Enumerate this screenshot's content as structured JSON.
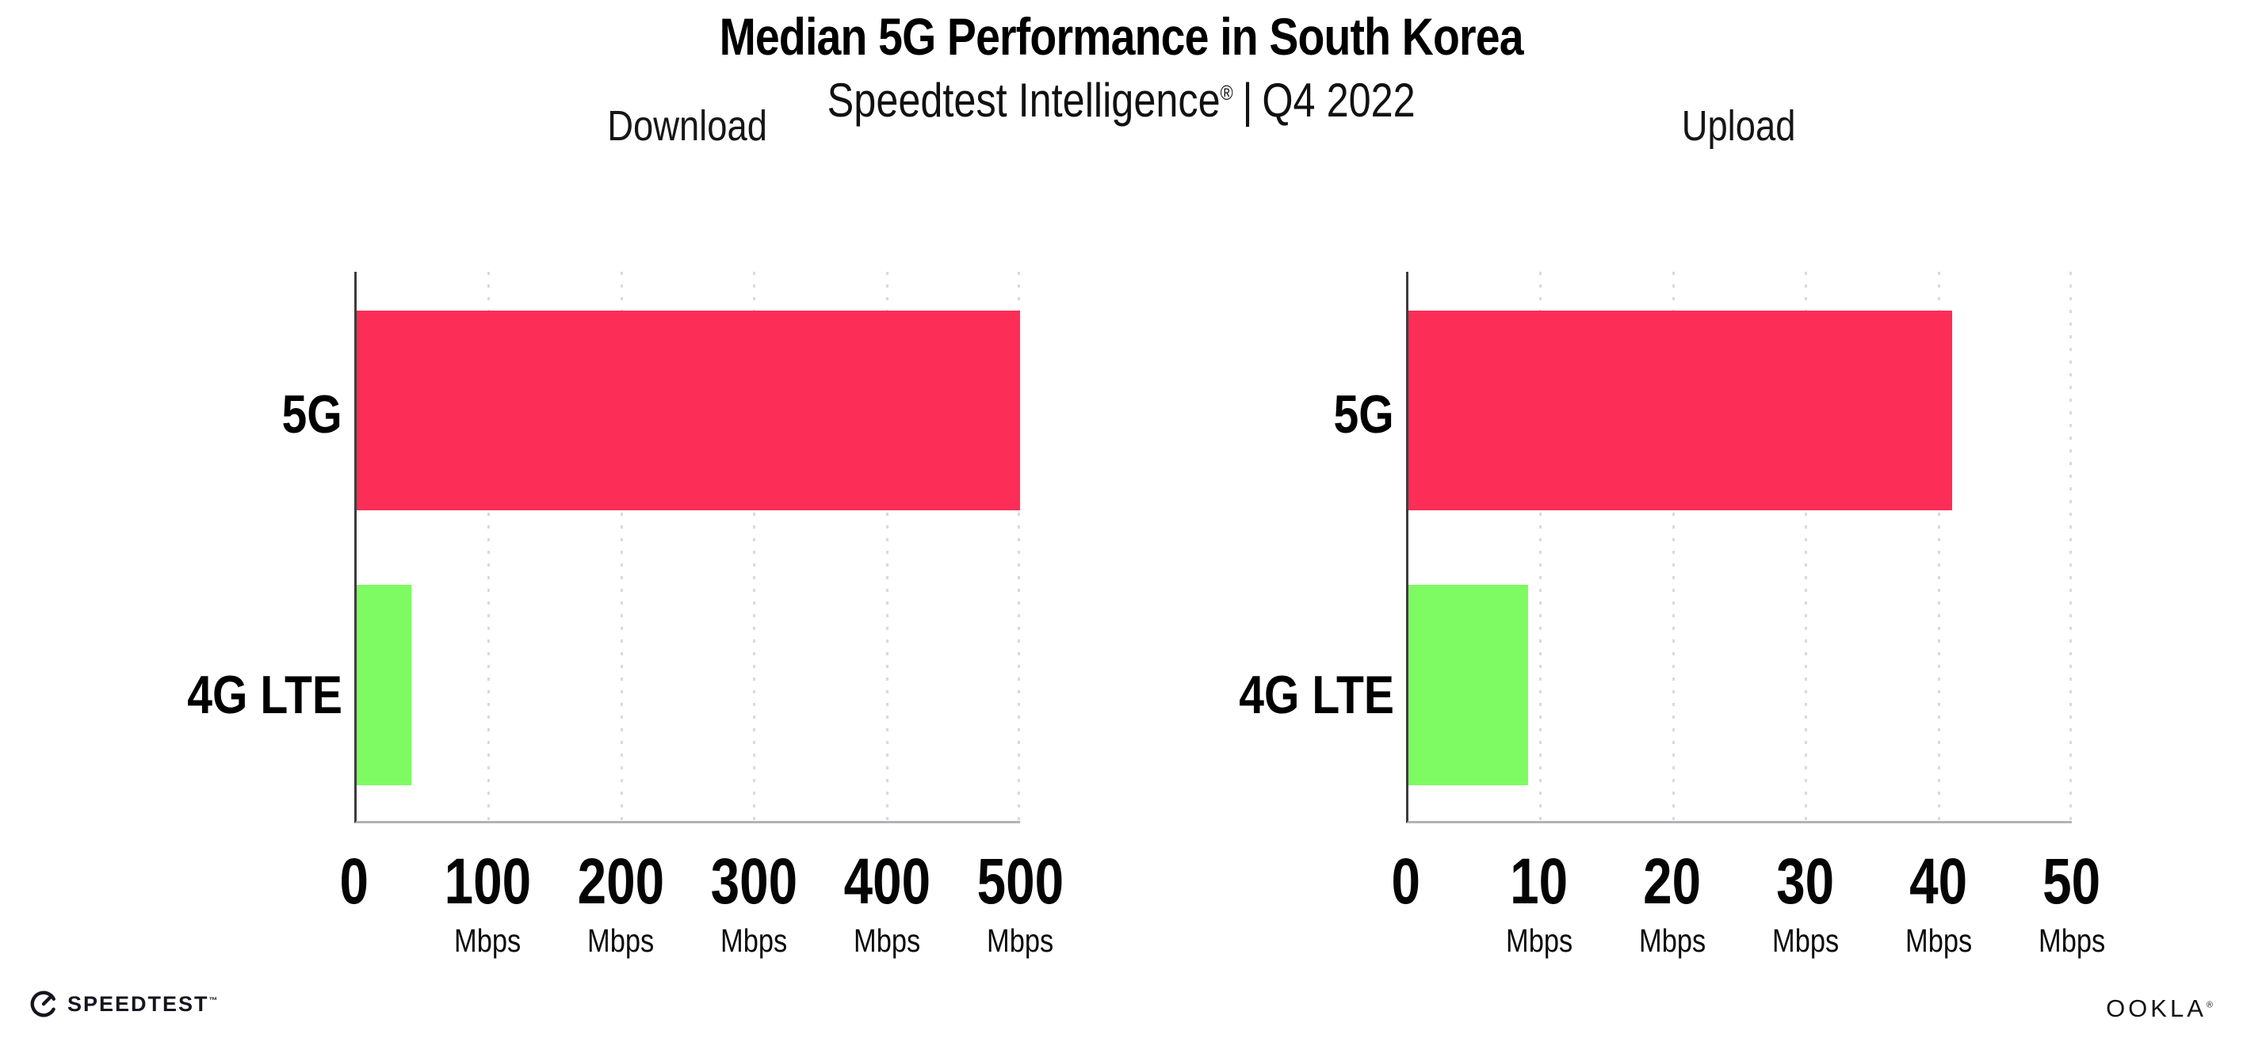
{
  "header": {
    "title": "Median 5G Performance in South Korea",
    "subtitle": {
      "brand": "Speedtest Intelligence",
      "reg": "®",
      "sep": "|",
      "period": "Q4 2022"
    }
  },
  "chart_data": [
    {
      "type": "bar",
      "orientation": "horizontal",
      "title": "Download",
      "categories": [
        "5G",
        "4G LTE"
      ],
      "values": [
        500,
        41
      ],
      "unit": "Mbps",
      "xlim": [
        0,
        500
      ],
      "xticks": [
        0,
        100,
        200,
        300,
        400,
        500
      ],
      "bar_colors": [
        "#fc2d57",
        "#7efb63"
      ],
      "grid": "vertical dotted",
      "legend": "none"
    },
    {
      "type": "bar",
      "orientation": "horizontal",
      "title": "Upload",
      "categories": [
        "5G",
        "4G LTE"
      ],
      "values": [
        41,
        9
      ],
      "unit": "Mbps",
      "xlim": [
        0,
        50
      ],
      "xticks": [
        0,
        10,
        20,
        30,
        40,
        50
      ],
      "bar_colors": [
        "#fc2d57",
        "#7efb63"
      ],
      "grid": "vertical dotted",
      "legend": "none"
    }
  ],
  "footer": {
    "speedtest_label": "SPEEDTEST",
    "speedtest_tm": "™",
    "ookla_label": "OOKLA",
    "ookla_reg": "®"
  },
  "colors": {
    "bar_5g": "#fc2d57",
    "bar_4g_lte": "#7efb63",
    "gridline": "#d9d9e2",
    "y_axis": "#3c3c3c",
    "x_axis": "#b2b2b8",
    "background": "#ffffff"
  }
}
